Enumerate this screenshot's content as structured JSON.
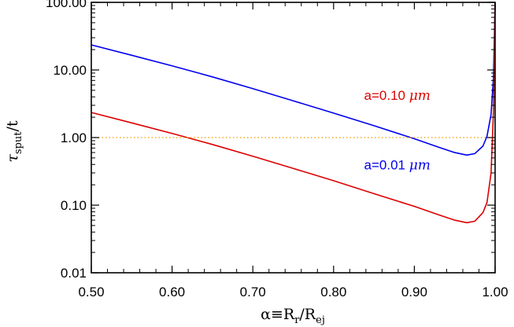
{
  "chart_data": {
    "type": "line",
    "title": "",
    "xlabel": {
      "main": "α≡R",
      "sub1": "r",
      "mid": "/R",
      "sub2": "ej"
    },
    "ylabel": {
      "main": "τ",
      "sub": "sput",
      "tail": "/t"
    },
    "xlim": [
      0.5,
      1.0
    ],
    "ylim": [
      0.01,
      100
    ],
    "yscale": "log",
    "grid": false,
    "x_ticks": [
      {
        "value": 0.5,
        "label": "0.50"
      },
      {
        "value": 0.6,
        "label": "0.60"
      },
      {
        "value": 0.7,
        "label": "0.70"
      },
      {
        "value": 0.8,
        "label": "0.80"
      },
      {
        "value": 0.9,
        "label": "0.90"
      },
      {
        "value": 1.0,
        "label": "1.00"
      }
    ],
    "y_ticks": [
      {
        "value": 0.01,
        "label": "0.01"
      },
      {
        "value": 0.1,
        "label": "0.10"
      },
      {
        "value": 1,
        "label": "1.00"
      },
      {
        "value": 10,
        "label": "10.00"
      },
      {
        "value": 100,
        "label": "100.00"
      }
    ],
    "reference_line": {
      "y": 1.0,
      "color": "#f5a623",
      "style": "dotted"
    },
    "series": [
      {
        "color": "#0000ee",
        "x": [
          0.5,
          0.55,
          0.6,
          0.65,
          0.7,
          0.75,
          0.8,
          0.85,
          0.9,
          0.93,
          0.95,
          0.965,
          0.975,
          0.985,
          0.99,
          0.995,
          0.998,
          1.0
        ],
        "y": [
          23.5,
          16.5,
          11.5,
          7.9,
          5.3,
          3.5,
          2.3,
          1.5,
          0.96,
          0.72,
          0.6,
          0.55,
          0.58,
          0.75,
          1.05,
          2.2,
          8,
          100
        ]
      },
      {
        "color": "#dd0000",
        "x": [
          0.5,
          0.55,
          0.6,
          0.65,
          0.7,
          0.75,
          0.8,
          0.85,
          0.9,
          0.93,
          0.95,
          0.965,
          0.975,
          0.985,
          0.99,
          0.995,
          0.998,
          1.0
        ],
        "y": [
          2.35,
          1.65,
          1.15,
          0.79,
          0.53,
          0.35,
          0.23,
          0.148,
          0.096,
          0.072,
          0.06,
          0.055,
          0.058,
          0.078,
          0.11,
          0.3,
          2.5,
          100
        ]
      }
    ],
    "annotations": [
      {
        "text": "a=0.10",
        "unit": "μm",
        "color": "#dd0000",
        "x": 0.92,
        "y": 3.6
      },
      {
        "text": "a=0.01",
        "unit": "μm",
        "color": "#0000ee",
        "x": 0.92,
        "y": 0.34
      }
    ]
  }
}
